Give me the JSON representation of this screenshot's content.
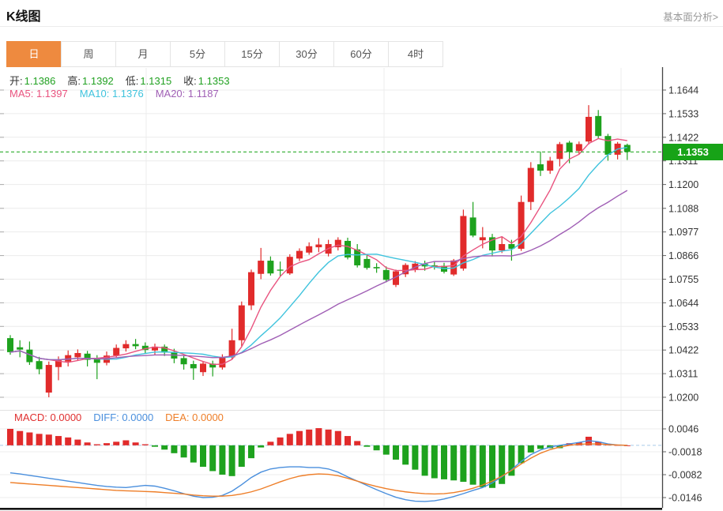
{
  "header": {
    "title": "K线图",
    "link_label": "基本面分析>"
  },
  "tabs": {
    "items": [
      "日",
      "周",
      "月",
      "5分",
      "15分",
      "30分",
      "60分",
      "4时"
    ],
    "selected": "日",
    "selected_index": 0
  },
  "info_bar": {
    "open_label": "开:",
    "open_value": "1.1386",
    "high_label": "高:",
    "high_value": "1.1392",
    "low_label": "低:",
    "low_value": "1.1315",
    "close_label": "收:",
    "close_value": "1.1353"
  },
  "ma_bar": {
    "ma5_label": "MA5:",
    "ma5_value": "1.1397",
    "ma10_label": "MA10:",
    "ma10_value": "1.1376",
    "ma20_label": "MA20:",
    "ma20_value": "1.1187"
  },
  "macd_bar": {
    "macd_label": "MACD:",
    "macd_value": "0.0000",
    "diff_label": "DIFF:",
    "diff_value": "0.0000",
    "dea_label": "DEA:",
    "dea_value": "0.0000"
  },
  "price_axis": {
    "tick_labels": [
      "1.1644",
      "1.1533",
      "1.1422",
      "1.1311",
      "1.1200",
      "1.1088",
      "1.0977",
      "1.0866",
      "1.0755",
      "1.0644",
      "1.0533",
      "1.0422",
      "1.0311",
      "1.0200"
    ],
    "current_price_label": "1.1353"
  },
  "macd_axis": {
    "tick_labels": [
      "0.0046",
      "-0.0018",
      "-0.0082",
      "-0.0146"
    ]
  },
  "colors": {
    "up": "#e12b2b",
    "down": "#1ea21e",
    "ma5": "#e9537f",
    "ma10": "#3fc3dd",
    "ma20": "#a05fb5",
    "diff": "#4a8fdd",
    "dea": "#ee7e28",
    "macd_label": "#e03030",
    "current_price": "#17a317",
    "tab_active": "#ee8a3f",
    "value_text": "#21a121",
    "grid": "#ececec",
    "axis": "#444"
  },
  "chart_data": {
    "type": "candlestick",
    "title": "K线图 (daily K-line with MA5/MA10/MA20 overlays and MACD sub-chart)",
    "legend": [
      "MA5",
      "MA10",
      "MA20",
      "MACD",
      "DIFF",
      "DEA"
    ],
    "y_axis_ticks": [
      1.1644,
      1.1533,
      1.1422,
      1.1311,
      1.12,
      1.1088,
      1.0977,
      1.0866,
      1.0755,
      1.0644,
      1.0533,
      1.0422,
      1.0311,
      1.02
    ],
    "current_price": 1.1353,
    "last_ohlc": {
      "open": 1.1386,
      "high": 1.1392,
      "low": 1.1315,
      "close": 1.1353
    },
    "ma_values": {
      "MA5": 1.1397,
      "MA10": 1.1376,
      "MA20": 1.1187,
      "periods": [
        5,
        10,
        20
      ]
    },
    "candles_format": [
      "open",
      "high",
      "low",
      "close"
    ],
    "candles": [
      [
        1.0478,
        1.0492,
        1.04,
        1.0412
      ],
      [
        1.0435,
        1.0468,
        1.0388,
        1.0424
      ],
      [
        1.0424,
        1.0462,
        1.0352,
        1.0365
      ],
      [
        1.037,
        1.039,
        1.0308,
        1.0332
      ],
      [
        1.0222,
        1.0368,
        1.02,
        1.0352
      ],
      [
        1.0342,
        1.0392,
        1.028,
        1.0374
      ],
      [
        1.0368,
        1.042,
        1.0345,
        1.0398
      ],
      [
        1.0388,
        1.0425,
        1.0372,
        1.0408
      ],
      [
        1.0405,
        1.0418,
        1.0345,
        1.0376
      ],
      [
        1.0378,
        1.0398,
        1.0285,
        1.0362
      ],
      [
        1.0362,
        1.0415,
        1.035,
        1.0396
      ],
      [
        1.0396,
        1.0448,
        1.0388,
        1.0432
      ],
      [
        1.043,
        1.0468,
        1.0415,
        1.045
      ],
      [
        1.045,
        1.0474,
        1.0426,
        1.044
      ],
      [
        1.0442,
        1.0458,
        1.0404,
        1.0422
      ],
      [
        1.042,
        1.0452,
        1.04,
        1.0438
      ],
      [
        1.0438,
        1.0448,
        1.0394,
        1.041
      ],
      [
        1.0412,
        1.0428,
        1.036,
        1.0382
      ],
      [
        1.0384,
        1.0398,
        1.033,
        1.0355
      ],
      [
        1.0356,
        1.0372,
        1.0282,
        1.0336
      ],
      [
        1.0318,
        1.0368,
        1.03,
        1.0358
      ],
      [
        1.0358,
        1.0372,
        1.0298,
        1.034
      ],
      [
        1.034,
        1.0402,
        1.033,
        1.0388
      ],
      [
        1.0388,
        1.0522,
        1.038,
        1.0468
      ],
      [
        1.0468,
        1.065,
        1.044,
        1.0632
      ],
      [
        1.0632,
        1.08,
        1.061,
        1.0788
      ],
      [
        1.078,
        1.0902,
        1.0755,
        1.0842
      ],
      [
        1.0842,
        1.0862,
        1.0772,
        1.0782
      ],
      [
        1.08,
        1.0838,
        1.0768,
        1.0795
      ],
      [
        1.0782,
        1.0872,
        1.0775,
        1.086
      ],
      [
        1.0852,
        1.09,
        1.084,
        1.0888
      ],
      [
        1.088,
        1.0928,
        1.087,
        1.091
      ],
      [
        1.0905,
        1.0948,
        1.0882,
        1.0918
      ],
      [
        1.0875,
        1.094,
        1.0862,
        1.092
      ],
      [
        1.0905,
        1.0952,
        1.089,
        1.094
      ],
      [
        1.0935,
        1.095,
        1.0848,
        1.0857
      ],
      [
        1.0895,
        1.092,
        1.081,
        1.082
      ],
      [
        1.085,
        1.0868,
        1.08,
        1.0808
      ],
      [
        1.0812,
        1.083,
        1.0785,
        1.0806
      ],
      [
        1.0798,
        1.0815,
        1.074,
        1.0752
      ],
      [
        1.0728,
        1.08,
        1.0718,
        1.0792
      ],
      [
        1.0778,
        1.083,
        1.0765,
        1.0822
      ],
      [
        1.08,
        1.084,
        1.0788,
        1.0828
      ],
      [
        1.0828,
        1.0842,
        1.0795,
        1.0815
      ],
      [
        1.082,
        1.0836,
        1.08,
        1.0818
      ],
      [
        1.0818,
        1.0832,
        1.0782,
        1.079
      ],
      [
        1.0777,
        1.085,
        1.077,
        1.0843
      ],
      [
        1.0805,
        1.1082,
        1.0795,
        1.1052
      ],
      [
        1.1045,
        1.1118,
        1.0952,
        1.096
      ],
      [
        1.0938,
        1.1,
        1.09,
        1.0952
      ],
      [
        1.0952,
        1.0968,
        1.0862,
        1.089
      ],
      [
        1.089,
        1.0952,
        1.0878,
        1.092
      ],
      [
        1.092,
        1.094,
        1.0842,
        1.0898
      ],
      [
        1.0898,
        1.1148,
        1.0888,
        1.1118
      ],
      [
        1.1118,
        1.1305,
        1.108,
        1.1278
      ],
      [
        1.1295,
        1.1355,
        1.124,
        1.1265
      ],
      [
        1.1265,
        1.133,
        1.125,
        1.1312
      ],
      [
        1.132,
        1.14,
        1.1285,
        1.139
      ],
      [
        1.1397,
        1.1405,
        1.13,
        1.1353
      ],
      [
        1.1358,
        1.1402,
        1.134,
        1.139
      ],
      [
        1.1402,
        1.1573,
        1.1388,
        1.1518
      ],
      [
        1.1522,
        1.155,
        1.1415,
        1.1428
      ],
      [
        1.1428,
        1.1438,
        1.1312,
        1.134
      ],
      [
        1.134,
        1.14,
        1.1318,
        1.1392
      ],
      [
        1.1386,
        1.1392,
        1.1315,
        1.1353
      ]
    ],
    "macd": {
      "y_axis_ticks": [
        0.0046,
        -0.0018,
        -0.0082,
        -0.0146
      ],
      "histogram": [
        0.0046,
        0.004,
        0.0036,
        0.0032,
        0.003,
        0.0026,
        0.0022,
        0.0016,
        0.0008,
        0.0003,
        0.0006,
        0.001,
        0.0014,
        0.0008,
        0.0003,
        -0.0004,
        -0.0012,
        -0.0022,
        -0.0034,
        -0.0048,
        -0.006,
        -0.0072,
        -0.0082,
        -0.0086,
        -0.006,
        -0.0036,
        -0.0006,
        0.001,
        0.0022,
        0.0032,
        0.004,
        0.0044,
        0.0048,
        0.0044,
        0.004,
        0.0026,
        0.0012,
        -0.0004,
        -0.0014,
        -0.0026,
        -0.004,
        -0.0054,
        -0.0068,
        -0.0085,
        -0.0092,
        -0.0095,
        -0.0098,
        -0.0102,
        -0.011,
        -0.0117,
        -0.0119,
        -0.0108,
        -0.0085,
        -0.005,
        -0.002,
        -0.001,
        -0.0008,
        -0.0008,
        0.0006,
        0.0008,
        0.0024,
        0.001,
        0.0003,
        0.0001,
        0.0
      ],
      "diff": [
        -0.0077,
        -0.008,
        -0.0084,
        -0.0088,
        -0.0092,
        -0.0096,
        -0.01,
        -0.0104,
        -0.0108,
        -0.0112,
        -0.0115,
        -0.0117,
        -0.0118,
        -0.0115,
        -0.0112,
        -0.0114,
        -0.012,
        -0.0127,
        -0.0135,
        -0.0142,
        -0.0146,
        -0.0145,
        -0.014,
        -0.0128,
        -0.011,
        -0.009,
        -0.0075,
        -0.0066,
        -0.0062,
        -0.006,
        -0.006,
        -0.0062,
        -0.0062,
        -0.0066,
        -0.0075,
        -0.0088,
        -0.01,
        -0.0112,
        -0.0124,
        -0.0135,
        -0.0145,
        -0.0152,
        -0.0156,
        -0.0157,
        -0.0155,
        -0.015,
        -0.0143,
        -0.0135,
        -0.0126,
        -0.0118,
        -0.0105,
        -0.0088,
        -0.0068,
        -0.0045,
        -0.0026,
        -0.0013,
        -0.0005,
        0.0,
        0.0004,
        0.0008,
        0.0013,
        0.001,
        0.0004,
        0.0001,
        0.0
      ],
      "dea": [
        -0.0104,
        -0.0106,
        -0.0108,
        -0.011,
        -0.0112,
        -0.0114,
        -0.0116,
        -0.0118,
        -0.012,
        -0.0122,
        -0.0124,
        -0.0126,
        -0.0127,
        -0.0128,
        -0.0129,
        -0.013,
        -0.0132,
        -0.0134,
        -0.0136,
        -0.0139,
        -0.0141,
        -0.0142,
        -0.0142,
        -0.014,
        -0.0136,
        -0.013,
        -0.0122,
        -0.0112,
        -0.0102,
        -0.0093,
        -0.0086,
        -0.0082,
        -0.008,
        -0.0081,
        -0.0085,
        -0.0092,
        -0.01,
        -0.0108,
        -0.0115,
        -0.0121,
        -0.0126,
        -0.013,
        -0.0133,
        -0.0135,
        -0.0136,
        -0.0135,
        -0.0132,
        -0.0127,
        -0.012,
        -0.0111,
        -0.01,
        -0.0086,
        -0.007,
        -0.0052,
        -0.0036,
        -0.0022,
        -0.0012,
        -0.0005,
        0.0,
        0.0003,
        0.0004,
        0.0004,
        0.0002,
        0.0001,
        0.0
      ]
    }
  }
}
